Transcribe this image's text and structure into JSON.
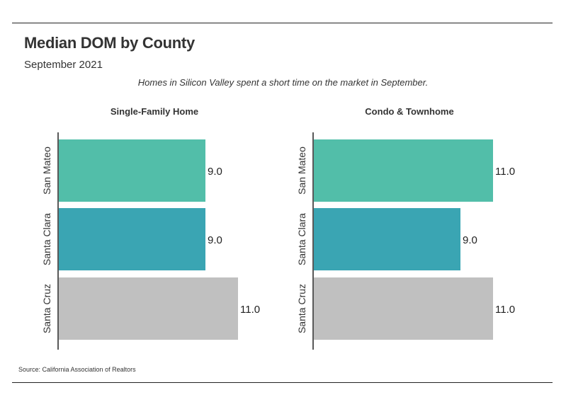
{
  "header": {
    "title": "Median DOM by County",
    "subtitle": "September 2021",
    "note": "Homes in Silicon Valley spent a short time on the market in September."
  },
  "footer": {
    "source": "Source:  California Association of Realtors"
  },
  "chart_data": [
    {
      "type": "bar",
      "orientation": "horizontal",
      "title": "Single-Family Home",
      "categories": [
        "San Mateo",
        "Santa Clara",
        "Santa Cruz"
      ],
      "values": [
        9.0,
        9.0,
        11.0
      ],
      "value_labels": [
        "9.0",
        "9.0",
        "11.0"
      ],
      "colors": [
        "#52bea9",
        "#3aa5b3",
        "#c0c0c0"
      ],
      "xlim": [
        0,
        11.0
      ],
      "grid": false
    },
    {
      "type": "bar",
      "orientation": "horizontal",
      "title": "Condo & Townhome",
      "categories": [
        "San Mateo",
        "Santa Clara",
        "Santa Cruz"
      ],
      "values": [
        11.0,
        9.0,
        11.0
      ],
      "value_labels": [
        "11.0",
        "9.0",
        "11.0"
      ],
      "colors": [
        "#52bea9",
        "#3aa5b3",
        "#c0c0c0"
      ],
      "xlim": [
        0,
        11.0
      ],
      "grid": false
    }
  ]
}
